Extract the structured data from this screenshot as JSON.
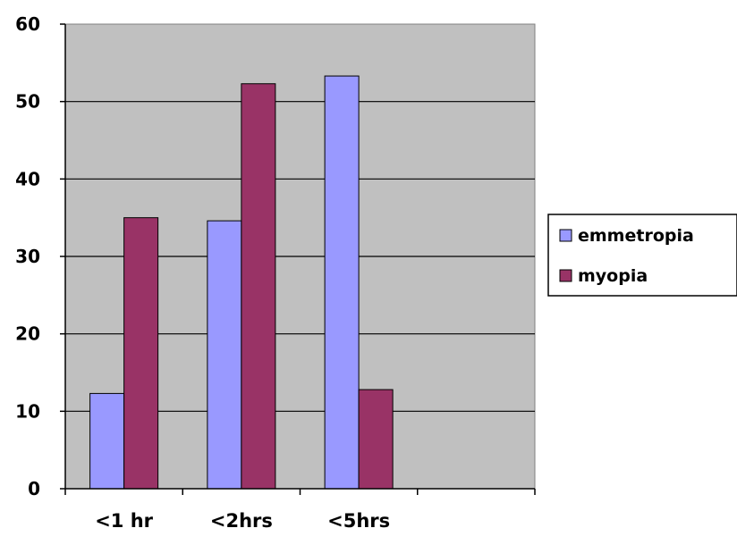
{
  "chart_data": {
    "type": "bar",
    "categories": [
      "<1 hr",
      "<2hrs",
      "<5hrs",
      ""
    ],
    "series": [
      {
        "name": "emmetropia",
        "values": [
          12.3,
          34.6,
          53.3,
          null
        ],
        "color": "#9999ff"
      },
      {
        "name": "myopia",
        "values": [
          35.0,
          52.3,
          12.8,
          null
        ],
        "color": "#993366"
      }
    ],
    "ylim": [
      0,
      60
    ],
    "yticks": [
      0,
      10,
      20,
      30,
      40,
      50,
      60
    ],
    "grid": true,
    "plot_background": "#c0c0c0",
    "legend_position": "right",
    "title": "",
    "xlabel": "",
    "ylabel": ""
  }
}
